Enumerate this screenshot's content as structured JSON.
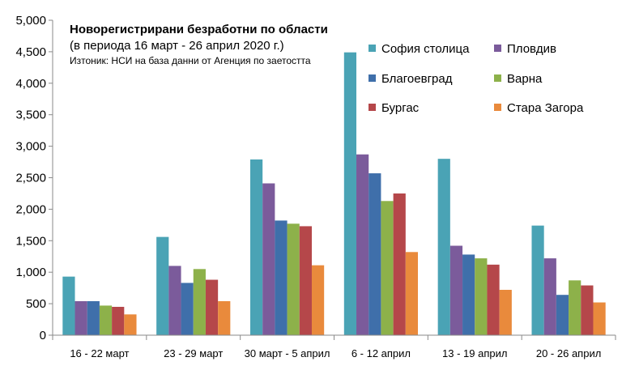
{
  "chart_data": {
    "type": "bar",
    "title": "Новорегистрирани безработни по области",
    "subtitle": "(в периода 16 март - 26 април 2020 г.)",
    "source": "Изтоник: НСИ на база данни от Агенция по заетостта",
    "categories": [
      "16 - 22 март",
      "23 - 29 март",
      "30 март - 5 април",
      "6 - 12 април",
      "13 - 19 април",
      "20 - 26 април"
    ],
    "series": [
      {
        "name": "София столица",
        "color": "#4aa3b5",
        "values": [
          930,
          1560,
          2790,
          4490,
          2800,
          1740
        ]
      },
      {
        "name": "Пловдив",
        "color": "#7b5b9b",
        "values": [
          540,
          1100,
          2410,
          2870,
          1420,
          1220
        ]
      },
      {
        "name": "Благоевград",
        "color": "#3f6faa",
        "values": [
          540,
          830,
          1820,
          2570,
          1280,
          640
        ]
      },
      {
        "name": "Варна",
        "color": "#8db14a",
        "values": [
          470,
          1050,
          1770,
          2130,
          1220,
          870
        ]
      },
      {
        "name": "Бургас",
        "color": "#b5474a",
        "values": [
          450,
          880,
          1730,
          2250,
          1120,
          790
        ]
      },
      {
        "name": "Стара Загора",
        "color": "#e98a3c",
        "values": [
          330,
          540,
          1110,
          1320,
          720,
          520
        ]
      }
    ],
    "ylim": [
      0,
      5000
    ],
    "yticks": [
      0,
      500,
      1000,
      1500,
      2000,
      2500,
      3000,
      3500,
      4000,
      4500,
      5000
    ],
    "ytick_labels": [
      "0",
      "500",
      "1,000",
      "1,500",
      "2,000",
      "2,500",
      "3,000",
      "3,500",
      "4,000",
      "4,500",
      "5,000"
    ],
    "legend_position": "top-right",
    "grid": false
  }
}
